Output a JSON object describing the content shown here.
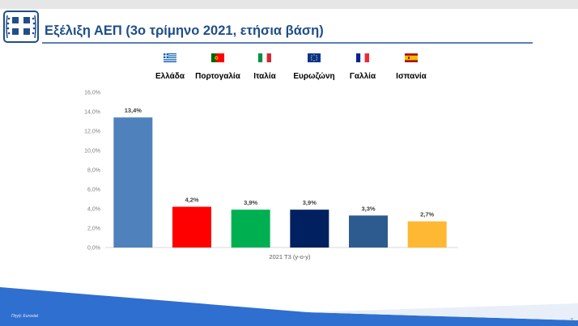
{
  "header": {
    "title": "Εξέλιξη ΑΕΠ (3ο τρίμηνο 2021, ετήσια βάση)"
  },
  "legend": [
    {
      "label": "Ελλάδα",
      "flag": "greece-flag-icon"
    },
    {
      "label": "Πορτογαλία",
      "flag": "portugal-flag-icon"
    },
    {
      "label": "Ιταλία",
      "flag": "italy-flag-icon"
    },
    {
      "label": "Ευρωζώνη",
      "flag": "eu-flag-icon"
    },
    {
      "label": "Γαλλία",
      "flag": "france-flag-icon"
    },
    {
      "label": "Ισπανία",
      "flag": "spain-flag-icon"
    }
  ],
  "chart_data": {
    "type": "bar",
    "categories": [
      "Ελλάδα",
      "Πορτογαλία",
      "Ιταλία",
      "Ευρωζώνη",
      "Γαλλία",
      "Ισπανία"
    ],
    "values": [
      13.4,
      4.2,
      3.9,
      3.9,
      3.3,
      2.7
    ],
    "data_labels": [
      "13,4%",
      "4,2%",
      "3,9%",
      "3,9%",
      "3,3%",
      "2,7%"
    ],
    "colors": [
      "#4f81bd",
      "#ff0000",
      "#00b050",
      "#002060",
      "#2e5b8f",
      "#ffb833"
    ],
    "xlabel": "2021 Τ3 (y-o-y)",
    "ylabel": "",
    "ylim": [
      0,
      16
    ],
    "y_ticks": [
      0,
      2,
      4,
      6,
      8,
      10,
      12,
      14,
      16
    ],
    "y_tick_labels": [
      "0,0%",
      "2,0%",
      "4,0%",
      "6,0%",
      "8,0%",
      "10,0%",
      "12,0%",
      "14,0%",
      "16,0%"
    ],
    "grid": false,
    "legend_position": "top"
  },
  "footer": {
    "source": "Πηγή: Eurostat",
    "page_number": "5"
  },
  "colors": {
    "title": "#1f4e8c",
    "footer_band": "#2f6fd0"
  }
}
